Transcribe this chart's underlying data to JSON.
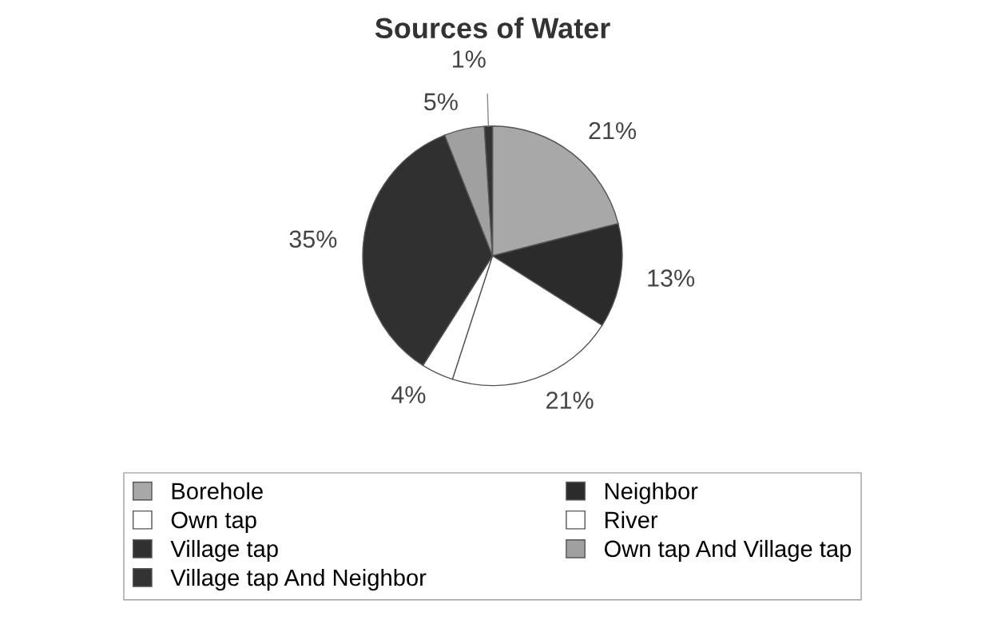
{
  "chart_data": {
    "type": "pie",
    "title": "Sources of Water",
    "categories": [
      "Borehole",
      "Neighbor",
      "Own tap",
      "River",
      "Village tap",
      "Own tap And Village tap",
      "Village tap And Neighbor"
    ],
    "values": [
      21,
      13,
      21,
      4,
      35,
      5,
      1
    ],
    "colors": [
      "#a8a8a8",
      "#2b2b2b",
      "#ffffff",
      "#ffffff",
      "#303030",
      "#a0a0a0",
      "#333333"
    ],
    "value_labels": [
      "21%",
      "13%",
      "21%",
      "4%",
      "35%",
      "5%",
      "1%"
    ],
    "legend": "bottom"
  }
}
